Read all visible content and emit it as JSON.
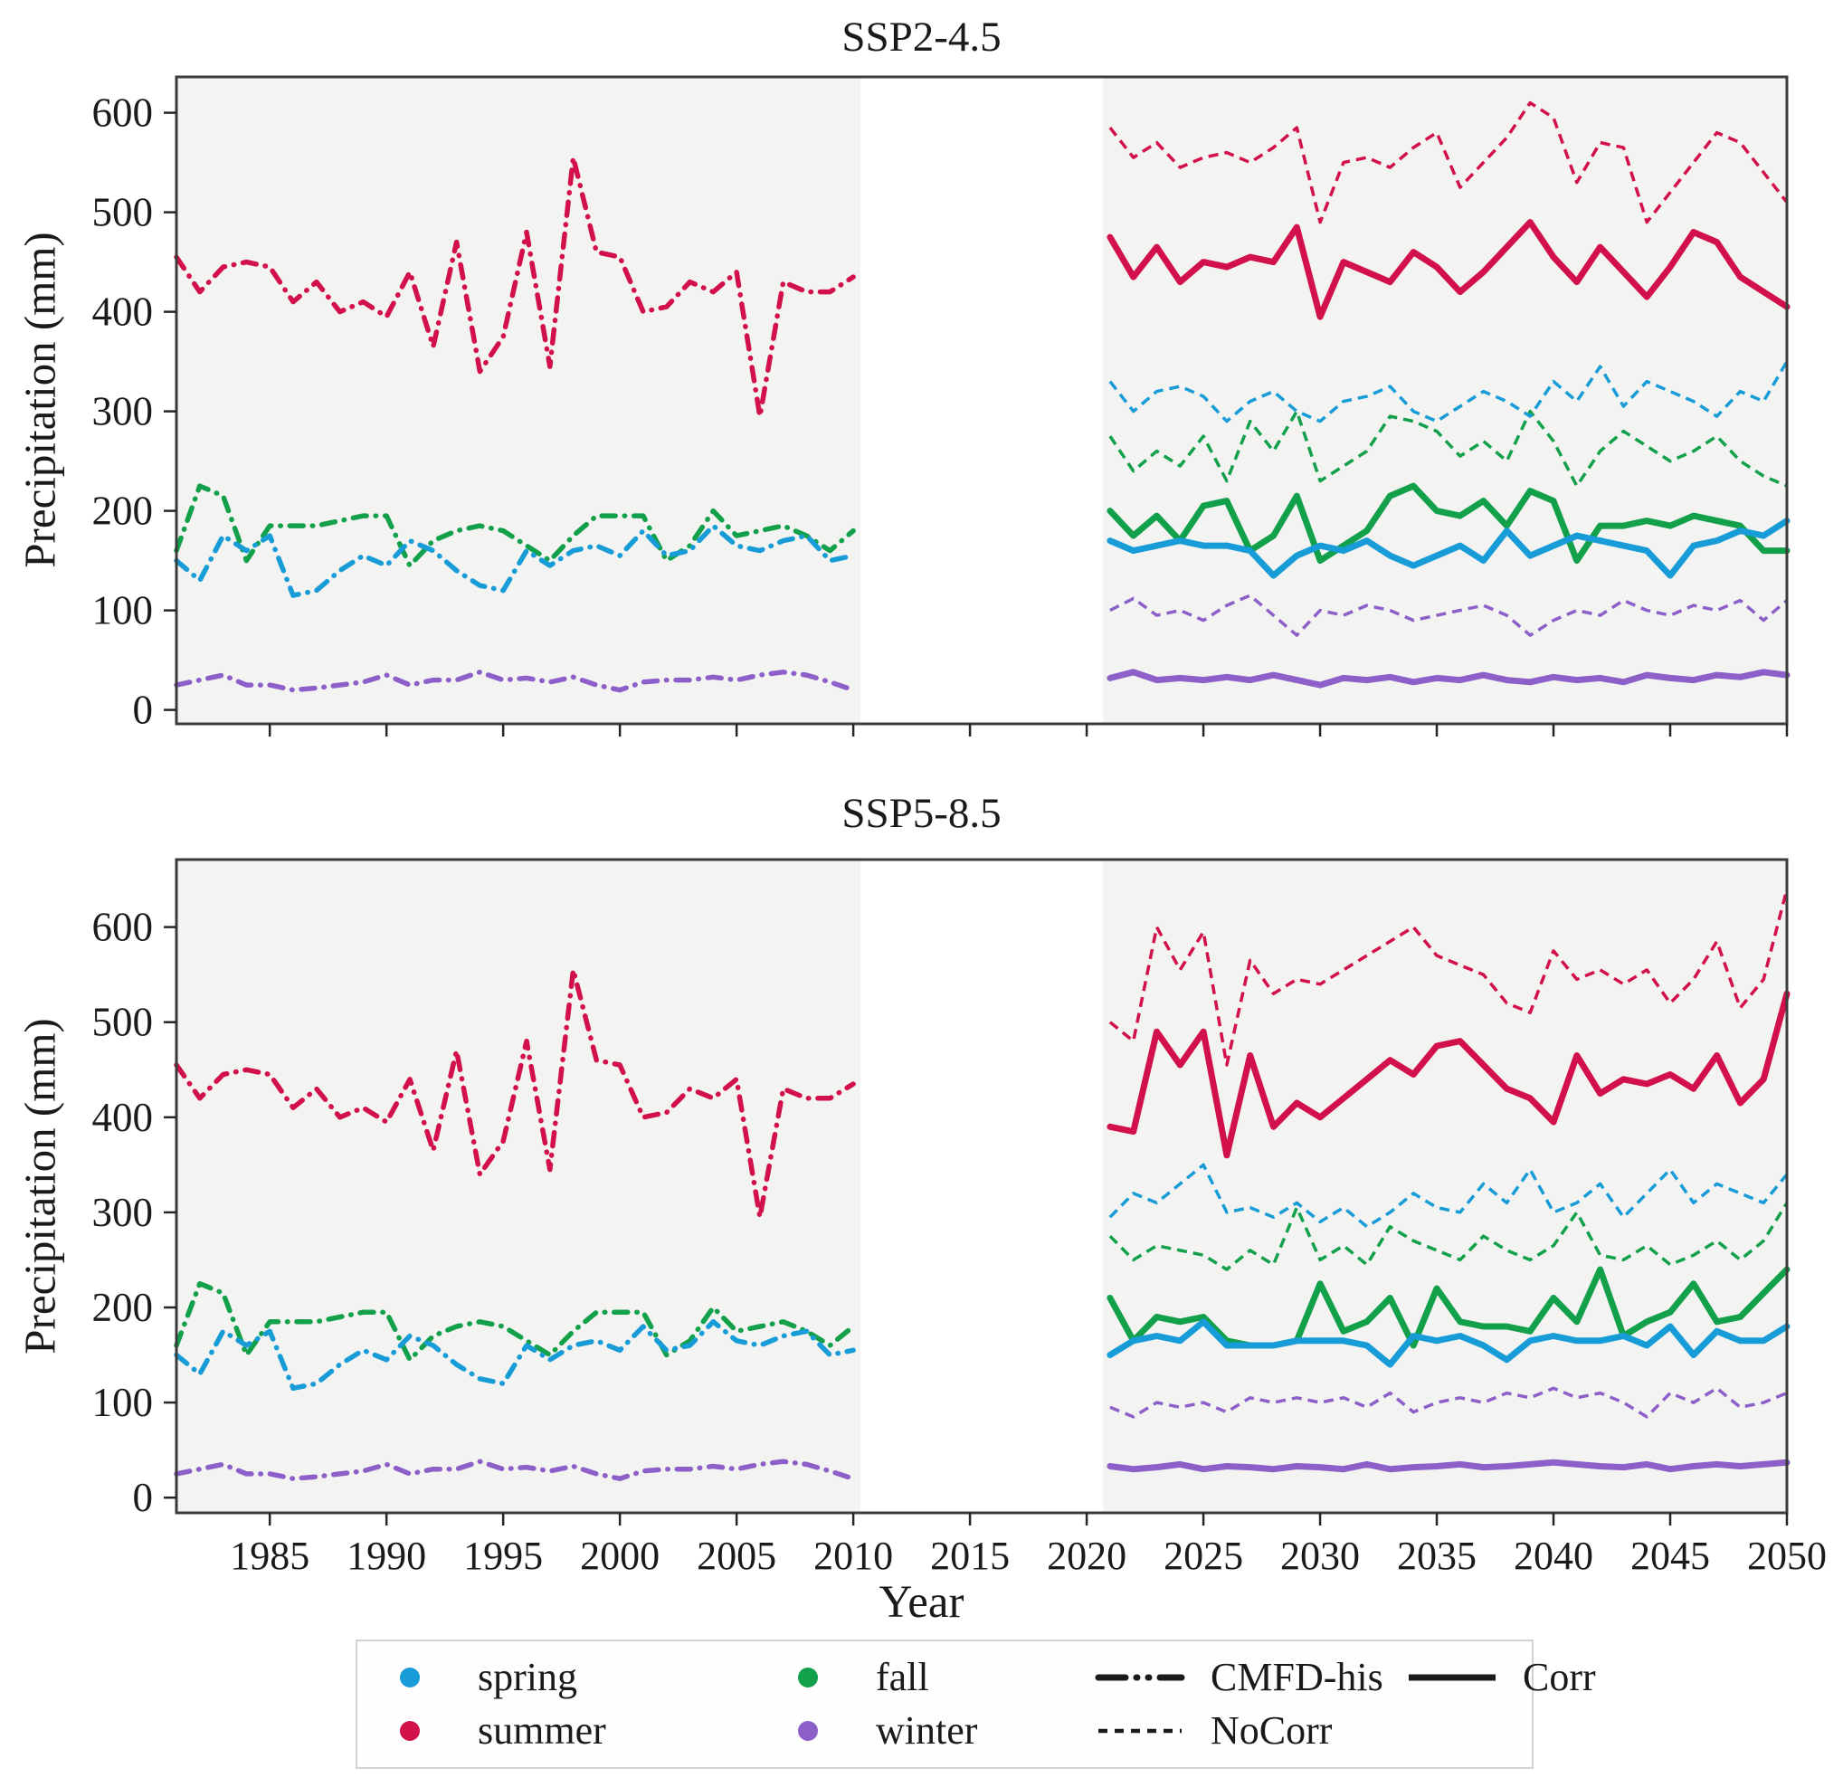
{
  "axes": {
    "x_label": "Year",
    "y_label": "Precipitation (mm)",
    "x_ticks": [
      1985,
      1990,
      1995,
      2000,
      2005,
      2010,
      2015,
      2020,
      2025,
      2030,
      2035,
      2040,
      2045,
      2050
    ],
    "y_ticks": [
      0,
      100,
      200,
      300,
      400,
      500,
      600
    ]
  },
  "colors": {
    "spring": "#189cd8",
    "summer": "#d2114a",
    "fall": "#13a04b",
    "winter": "#8d5fc9",
    "band": "#f3f3f2",
    "axis": "#3b3b3b",
    "tick": "#262626"
  },
  "legend": {
    "season_entries": [
      {
        "label": "spring",
        "season": "spring"
      },
      {
        "label": "summer",
        "season": "summer"
      },
      {
        "label": "fall",
        "season": "fall"
      },
      {
        "label": "winter",
        "season": "winter"
      }
    ],
    "style_entries": [
      {
        "label": "CMFD-his",
        "style": "dashdot"
      },
      {
        "label": "NoCorr",
        "style": "dashed"
      },
      {
        "label": "Corr",
        "style": "solid"
      }
    ]
  },
  "chart_data": [
    {
      "type": "line",
      "id": "ssp245",
      "title": "SSP2-4.5",
      "xlabel": "Year",
      "ylabel": "Precipitation (mm)",
      "xlim": [
        1981,
        2050
      ],
      "ylim": [
        -14,
        636
      ],
      "grid": false,
      "show_x_tick_labels": false,
      "shaded_spans": [
        [
          1981,
          2010.3
        ],
        [
          2020.7,
          2050
        ]
      ],
      "years": {
        "historical": [
          1981,
          2010
        ],
        "future": [
          2021,
          2050
        ]
      },
      "series": [
        {
          "name": "summer NoCorr",
          "season": "summer",
          "style": "NoCorr",
          "period": "future",
          "values": [
            585,
            555,
            570,
            545,
            555,
            560,
            550,
            565,
            585,
            490,
            550,
            555,
            545,
            565,
            580,
            525,
            550,
            575,
            610,
            595,
            530,
            570,
            565,
            490,
            520,
            550,
            580,
            570,
            540,
            510
          ]
        },
        {
          "name": "fall NoCorr",
          "season": "fall",
          "style": "NoCorr",
          "period": "future",
          "values": [
            275,
            240,
            260,
            245,
            275,
            230,
            290,
            260,
            300,
            230,
            245,
            260,
            295,
            290,
            280,
            255,
            270,
            250,
            300,
            270,
            225,
            260,
            280,
            265,
            250,
            260,
            275,
            250,
            235,
            225
          ]
        },
        {
          "name": "spring NoCorr",
          "season": "spring",
          "style": "NoCorr",
          "period": "future",
          "values": [
            330,
            300,
            320,
            325,
            315,
            290,
            310,
            320,
            300,
            290,
            310,
            315,
            325,
            300,
            290,
            305,
            320,
            310,
            295,
            330,
            310,
            345,
            305,
            330,
            320,
            310,
            295,
            320,
            310,
            350
          ]
        },
        {
          "name": "winter NoCorr",
          "season": "winter",
          "style": "NoCorr",
          "period": "future",
          "values": [
            100,
            112,
            95,
            100,
            90,
            105,
            115,
            95,
            75,
            100,
            95,
            105,
            100,
            90,
            95,
            100,
            105,
            95,
            75,
            90,
            100,
            95,
            110,
            100,
            95,
            105,
            100,
            110,
            90,
            110
          ]
        },
        {
          "name": "summer CMFD-his",
          "season": "summer",
          "style": "CMFD-his",
          "period": "historical",
          "values": [
            455,
            420,
            445,
            450,
            445,
            410,
            430,
            400,
            410,
            395,
            440,
            365,
            470,
            340,
            375,
            480,
            345,
            555,
            460,
            455,
            400,
            405,
            430,
            420,
            440,
            295,
            430,
            420,
            420,
            435
          ]
        },
        {
          "name": "fall CMFD-his",
          "season": "fall",
          "style": "CMFD-his",
          "period": "historical",
          "values": [
            160,
            225,
            215,
            150,
            185,
            185,
            185,
            190,
            195,
            195,
            145,
            170,
            180,
            185,
            180,
            165,
            150,
            175,
            195,
            195,
            195,
            150,
            165,
            200,
            175,
            180,
            185,
            175,
            160,
            180
          ]
        },
        {
          "name": "spring CMFD-his",
          "season": "spring",
          "style": "CMFD-his",
          "period": "historical",
          "values": [
            150,
            130,
            175,
            160,
            175,
            115,
            120,
            140,
            155,
            145,
            170,
            160,
            140,
            125,
            120,
            160,
            145,
            160,
            165,
            155,
            180,
            155,
            160,
            185,
            165,
            160,
            170,
            175,
            150,
            155
          ]
        },
        {
          "name": "winter CMFD-his",
          "season": "winter",
          "style": "CMFD-his",
          "period": "historical",
          "values": [
            25,
            30,
            35,
            25,
            25,
            20,
            22,
            25,
            28,
            35,
            25,
            30,
            30,
            38,
            30,
            32,
            28,
            33,
            25,
            20,
            28,
            30,
            30,
            33,
            30,
            35,
            38,
            35,
            28,
            20
          ]
        },
        {
          "name": "summer Corr",
          "season": "summer",
          "style": "Corr",
          "period": "future",
          "values": [
            475,
            435,
            465,
            430,
            450,
            445,
            455,
            450,
            485,
            395,
            450,
            440,
            430,
            460,
            445,
            420,
            440,
            465,
            490,
            455,
            430,
            465,
            440,
            415,
            445,
            480,
            470,
            435,
            420,
            405
          ]
        },
        {
          "name": "fall Corr",
          "season": "fall",
          "style": "Corr",
          "period": "future",
          "values": [
            200,
            175,
            195,
            170,
            205,
            210,
            160,
            175,
            215,
            150,
            165,
            180,
            215,
            225,
            200,
            195,
            210,
            185,
            220,
            210,
            150,
            185,
            185,
            190,
            185,
            195,
            190,
            185,
            160,
            160
          ]
        },
        {
          "name": "spring Corr",
          "season": "spring",
          "style": "Corr",
          "period": "future",
          "values": [
            170,
            160,
            165,
            170,
            165,
            165,
            160,
            135,
            155,
            165,
            160,
            170,
            155,
            145,
            155,
            165,
            150,
            180,
            155,
            165,
            175,
            170,
            165,
            160,
            135,
            165,
            170,
            180,
            175,
            190
          ]
        },
        {
          "name": "winter Corr",
          "season": "winter",
          "style": "Corr",
          "period": "future",
          "values": [
            32,
            38,
            30,
            32,
            30,
            33,
            30,
            35,
            30,
            25,
            32,
            30,
            33,
            28,
            32,
            30,
            35,
            30,
            28,
            33,
            30,
            32,
            28,
            35,
            32,
            30,
            35,
            33,
            38,
            35
          ]
        }
      ]
    },
    {
      "type": "line",
      "id": "ssp585",
      "title": "SSP5-8.5",
      "xlabel": "Year",
      "ylabel": "Precipitation (mm)",
      "xlim": [
        1981,
        2050
      ],
      "ylim": [
        -16,
        671
      ],
      "grid": false,
      "show_x_tick_labels": true,
      "shaded_spans": [
        [
          1981,
          2010.3
        ],
        [
          2020.7,
          2050
        ]
      ],
      "years": {
        "historical": [
          1981,
          2010
        ],
        "future": [
          2021,
          2050
        ]
      },
      "series": [
        {
          "name": "summer NoCorr",
          "season": "summer",
          "style": "NoCorr",
          "period": "future",
          "values": [
            500,
            480,
            600,
            555,
            595,
            455,
            565,
            530,
            545,
            540,
            555,
            570,
            585,
            600,
            570,
            560,
            550,
            520,
            510,
            575,
            545,
            555,
            540,
            555,
            520,
            545,
            585,
            515,
            545,
            640
          ]
        },
        {
          "name": "fall NoCorr",
          "season": "fall",
          "style": "NoCorr",
          "period": "future",
          "values": [
            275,
            250,
            265,
            260,
            255,
            240,
            260,
            245,
            305,
            250,
            265,
            245,
            285,
            270,
            260,
            250,
            275,
            260,
            250,
            265,
            300,
            255,
            250,
            265,
            245,
            255,
            270,
            250,
            270,
            310
          ]
        },
        {
          "name": "spring NoCorr",
          "season": "spring",
          "style": "NoCorr",
          "period": "future",
          "values": [
            295,
            320,
            310,
            330,
            350,
            300,
            305,
            295,
            310,
            290,
            305,
            285,
            300,
            320,
            305,
            300,
            330,
            310,
            345,
            300,
            310,
            330,
            295,
            320,
            345,
            310,
            330,
            320,
            310,
            340
          ]
        },
        {
          "name": "winter NoCorr",
          "season": "winter",
          "style": "NoCorr",
          "period": "future",
          "values": [
            95,
            85,
            100,
            95,
            100,
            90,
            105,
            100,
            105,
            100,
            105,
            95,
            110,
            90,
            100,
            105,
            100,
            110,
            105,
            115,
            105,
            110,
            100,
            85,
            110,
            100,
            115,
            95,
            100,
            110
          ]
        },
        {
          "name": "summer CMFD-his",
          "season": "summer",
          "style": "CMFD-his",
          "period": "historical",
          "values": [
            455,
            420,
            445,
            450,
            445,
            410,
            430,
            400,
            410,
            395,
            440,
            365,
            470,
            340,
            375,
            480,
            345,
            555,
            460,
            455,
            400,
            405,
            430,
            420,
            440,
            295,
            430,
            420,
            420,
            435
          ]
        },
        {
          "name": "fall CMFD-his",
          "season": "fall",
          "style": "CMFD-his",
          "period": "historical",
          "values": [
            160,
            225,
            215,
            150,
            185,
            185,
            185,
            190,
            195,
            195,
            145,
            170,
            180,
            185,
            180,
            165,
            150,
            175,
            195,
            195,
            195,
            150,
            165,
            200,
            175,
            180,
            185,
            175,
            160,
            180
          ]
        },
        {
          "name": "spring CMFD-his",
          "season": "spring",
          "style": "CMFD-his",
          "period": "historical",
          "values": [
            150,
            130,
            175,
            160,
            175,
            115,
            120,
            140,
            155,
            145,
            170,
            160,
            140,
            125,
            120,
            160,
            145,
            160,
            165,
            155,
            180,
            155,
            160,
            185,
            165,
            160,
            170,
            175,
            150,
            155
          ]
        },
        {
          "name": "winter CMFD-his",
          "season": "winter",
          "style": "CMFD-his",
          "period": "historical",
          "values": [
            25,
            30,
            35,
            25,
            25,
            20,
            22,
            25,
            28,
            35,
            25,
            30,
            30,
            38,
            30,
            32,
            28,
            33,
            25,
            20,
            28,
            30,
            30,
            33,
            30,
            35,
            38,
            35,
            28,
            20
          ]
        },
        {
          "name": "summer Corr",
          "season": "summer",
          "style": "Corr",
          "period": "future",
          "values": [
            390,
            385,
            490,
            455,
            490,
            360,
            465,
            390,
            415,
            400,
            420,
            440,
            460,
            445,
            475,
            480,
            455,
            430,
            420,
            395,
            465,
            425,
            440,
            435,
            445,
            430,
            465,
            415,
            440,
            530
          ]
        },
        {
          "name": "fall Corr",
          "season": "fall",
          "style": "Corr",
          "period": "future",
          "values": [
            210,
            165,
            190,
            185,
            190,
            165,
            160,
            160,
            165,
            225,
            175,
            185,
            210,
            160,
            220,
            185,
            180,
            180,
            175,
            210,
            185,
            240,
            170,
            185,
            195,
            225,
            185,
            190,
            215,
            240
          ]
        },
        {
          "name": "spring Corr",
          "season": "spring",
          "style": "Corr",
          "period": "future",
          "values": [
            150,
            165,
            170,
            165,
            185,
            160,
            160,
            160,
            165,
            165,
            165,
            160,
            140,
            170,
            165,
            170,
            160,
            145,
            165,
            170,
            165,
            165,
            170,
            160,
            180,
            150,
            175,
            165,
            165,
            180
          ]
        },
        {
          "name": "winter Corr",
          "season": "winter",
          "style": "Corr",
          "period": "future",
          "values": [
            33,
            30,
            32,
            35,
            30,
            33,
            32,
            30,
            33,
            32,
            30,
            35,
            30,
            32,
            33,
            35,
            32,
            33,
            35,
            37,
            35,
            33,
            32,
            35,
            30,
            33,
            35,
            33,
            35,
            37
          ]
        }
      ]
    }
  ]
}
